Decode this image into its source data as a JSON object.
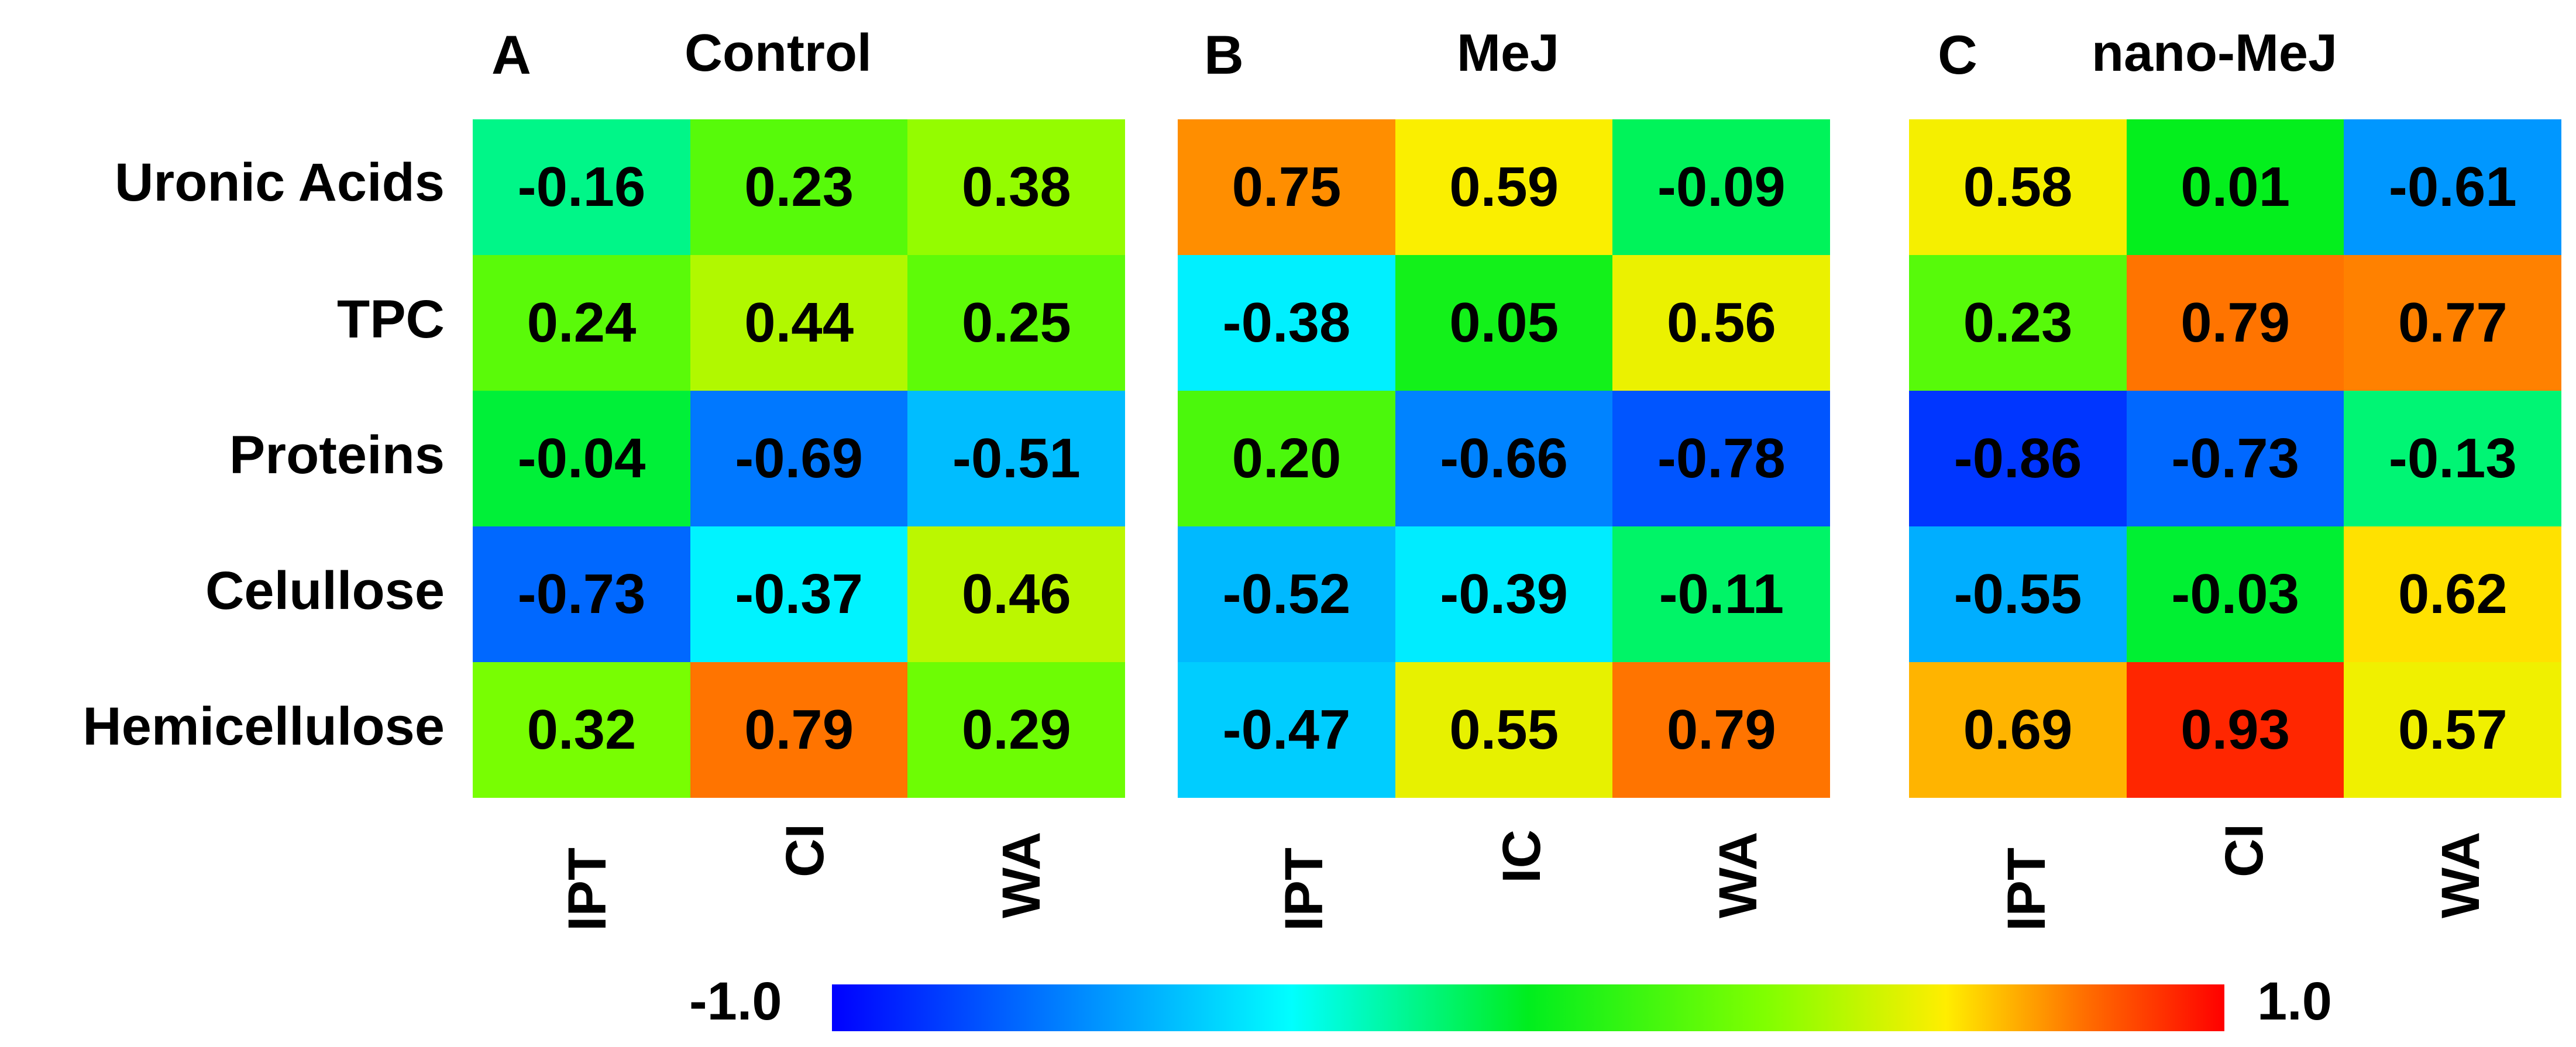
{
  "chart_data": {
    "type": "heatmap",
    "rows": [
      "Uronic Acids",
      "TPC",
      "Proteins",
      "Celullose",
      "Hemicellulose"
    ],
    "colorbar": {
      "min_label": "-1.0",
      "max_label": "1.0",
      "range": [
        -1.0,
        1.0
      ]
    },
    "panels": [
      {
        "letter": "A",
        "title": "Control",
        "columns": [
          "IPT",
          "CI",
          "WA"
        ],
        "values": [
          [
            -0.16,
            0.23,
            0.38
          ],
          [
            0.24,
            0.44,
            0.25
          ],
          [
            -0.04,
            -0.69,
            -0.51
          ],
          [
            -0.73,
            -0.37,
            0.46
          ],
          [
            0.32,
            0.79,
            0.29
          ]
        ],
        "labels": [
          [
            "-0.16",
            "0.23",
            "0.38"
          ],
          [
            "0.24",
            "0.44",
            "0.25"
          ],
          [
            "-0.04",
            "-0.69",
            "-0.51"
          ],
          [
            "-0.73",
            "-0.37",
            "0.46"
          ],
          [
            "0.32",
            "0.79",
            "0.29"
          ]
        ]
      },
      {
        "letter": "B",
        "title": "MeJ",
        "columns": [
          "IPT",
          "IC",
          "WA"
        ],
        "values": [
          [
            0.75,
            0.59,
            -0.09
          ],
          [
            -0.38,
            0.05,
            0.56
          ],
          [
            0.2,
            -0.66,
            -0.78
          ],
          [
            -0.52,
            -0.39,
            -0.11
          ],
          [
            -0.47,
            0.55,
            0.79
          ]
        ],
        "labels": [
          [
            "0.75",
            "0.59",
            "-0.09"
          ],
          [
            "-0.38",
            "0.05",
            "0.56"
          ],
          [
            "0.20",
            "-0.66",
            "-0.78"
          ],
          [
            "-0.52",
            "-0.39",
            "-0.11"
          ],
          [
            "-0.47",
            "0.55",
            "0.79"
          ]
        ]
      },
      {
        "letter": "C",
        "title": "nano-MeJ",
        "columns": [
          "IPT",
          "CI",
          "WA"
        ],
        "values": [
          [
            0.58,
            0.01,
            -0.61
          ],
          [
            0.23,
            0.79,
            0.77
          ],
          [
            -0.86,
            -0.73,
            -0.13
          ],
          [
            -0.55,
            -0.03,
            0.62
          ],
          [
            0.69,
            0.93,
            0.57
          ]
        ],
        "labels": [
          [
            "0.58",
            "0.01",
            "-0.61"
          ],
          [
            "0.23",
            "0.79",
            "0.77"
          ],
          [
            "-0.86",
            "-0.73",
            "-0.13"
          ],
          [
            "-0.55",
            "-0.03",
            "0.62"
          ],
          [
            "0.69",
            "0.93",
            "0.57"
          ]
        ]
      }
    ]
  }
}
